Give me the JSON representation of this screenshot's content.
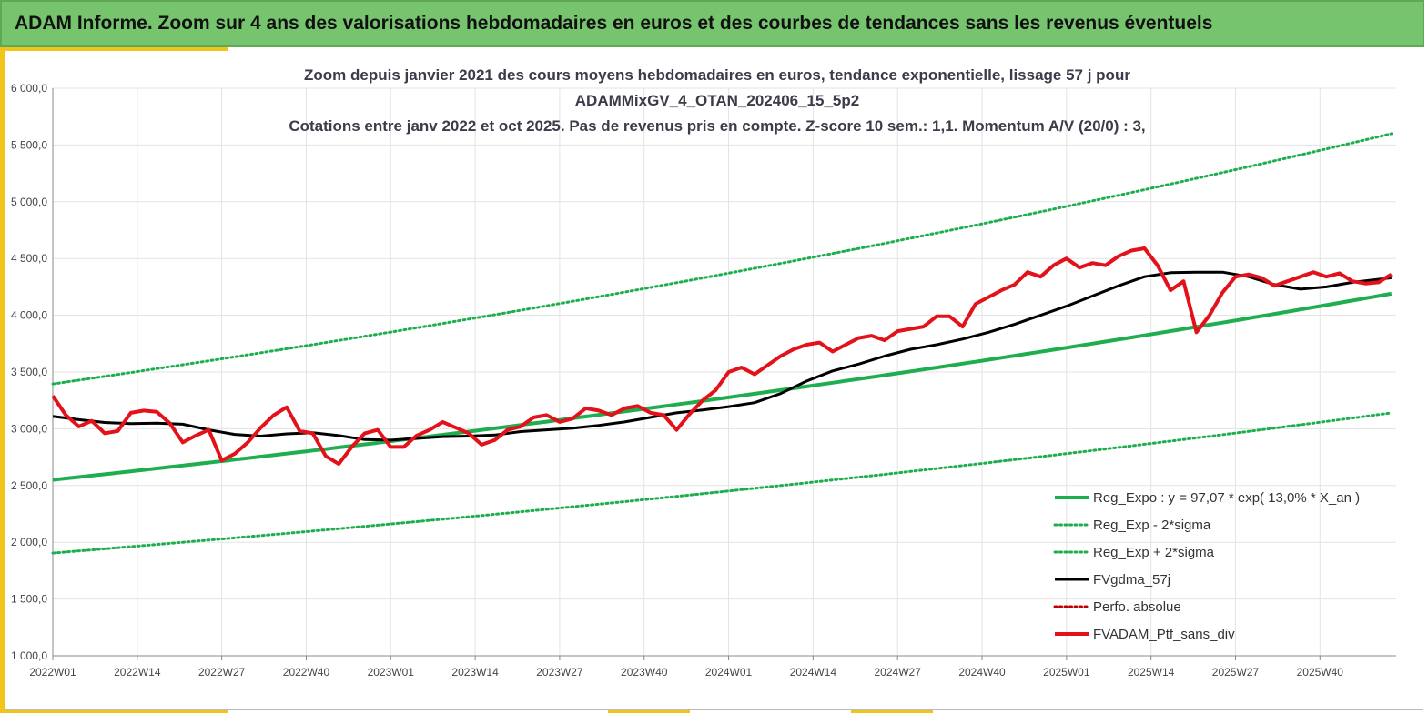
{
  "header": {
    "title": "ADAM Informe. Zoom sur 4 ans des valorisations hebdomadaires en euros et des courbes de tendances sans les revenus éventuels"
  },
  "colors": {
    "header_bg": "#77c46f",
    "accent": "#f0c419",
    "reg_expo": "#1fae4f",
    "fvgdma": "#000000",
    "perfo": "#c00000",
    "fvadam": "#e3121a",
    "grid": "#e3e3e3"
  },
  "chart_data": {
    "type": "line",
    "title_lines": [
      "Zoom depuis janvier 2021 des cours moyens hebdomadaires  en euros, tendance exponentielle, lissage 57 j pour",
      "ADAMMixGV_4_OTAN_202406_15_5p2",
      "Cotations  entre janv 2022 et oct 2025. Pas de revenus pris en compte. Z-score 10 sem.: 1,1. Momentum A/V (20/0) : 3,"
    ],
    "xlabel": "",
    "ylabel": "",
    "ylim": [
      1000,
      6000
    ],
    "y_ticks": [
      "1 000,0",
      "1 500,0",
      "2 000,0",
      "2 500,0",
      "3 000,0",
      "3 500,0",
      "4 000,0",
      "4 500,0",
      "5 000,0",
      "5 500,0",
      "6 000,0"
    ],
    "x_ticks": [
      "2022W01",
      "2022W14",
      "2022W27",
      "2022W40",
      "2023W01",
      "2023W14",
      "2023W27",
      "2023W40",
      "2024W01",
      "2024W14",
      "2024W27",
      "2024W40",
      "2025W01",
      "2025W14",
      "2025W27",
      "2025W40"
    ],
    "grid": true,
    "legend_position": "bottom-right",
    "series": [
      {
        "name": "Reg_Expo : y = 97,07 * exp( 13,0% *  X_an )",
        "style": "solid-thick",
        "color": "#1fae4f",
        "key_points": [
          [
            0,
            2550
          ],
          [
            52,
            2910
          ],
          [
            104,
            3320
          ],
          [
            156,
            3780
          ],
          [
            206,
            4190
          ]
        ]
      },
      {
        "name": "Reg_Exp - 2*sigma",
        "style": "dotted",
        "color": "#1fae4f",
        "key_points": [
          [
            0,
            1905
          ],
          [
            52,
            2200
          ],
          [
            104,
            2510
          ],
          [
            156,
            2840
          ],
          [
            206,
            3140
          ]
        ]
      },
      {
        "name": "Reg_Exp + 2*sigma",
        "style": "dotted",
        "color": "#1fae4f",
        "key_points": [
          [
            0,
            3395
          ],
          [
            52,
            3880
          ],
          [
            104,
            4420
          ],
          [
            156,
            5000
          ],
          [
            206,
            5600
          ]
        ]
      },
      {
        "name": "FVgdma_57j",
        "style": "solid",
        "color": "#000000",
        "key_points": [
          [
            0,
            3110
          ],
          [
            4,
            3080
          ],
          [
            8,
            3055
          ],
          [
            12,
            3045
          ],
          [
            16,
            3050
          ],
          [
            20,
            3040
          ],
          [
            24,
            2990
          ],
          [
            28,
            2950
          ],
          [
            32,
            2935
          ],
          [
            36,
            2955
          ],
          [
            40,
            2965
          ],
          [
            44,
            2940
          ],
          [
            48,
            2905
          ],
          [
            52,
            2900
          ],
          [
            56,
            2915
          ],
          [
            60,
            2930
          ],
          [
            64,
            2935
          ],
          [
            68,
            2945
          ],
          [
            72,
            2975
          ],
          [
            76,
            2990
          ],
          [
            80,
            3005
          ],
          [
            84,
            3030
          ],
          [
            88,
            3060
          ],
          [
            92,
            3100
          ],
          [
            96,
            3140
          ],
          [
            100,
            3165
          ],
          [
            104,
            3195
          ],
          [
            108,
            3230
          ],
          [
            112,
            3310
          ],
          [
            116,
            3420
          ],
          [
            120,
            3510
          ],
          [
            124,
            3570
          ],
          [
            128,
            3640
          ],
          [
            132,
            3700
          ],
          [
            136,
            3740
          ],
          [
            140,
            3790
          ],
          [
            144,
            3850
          ],
          [
            148,
            3920
          ],
          [
            152,
            4000
          ],
          [
            156,
            4080
          ],
          [
            160,
            4170
          ],
          [
            164,
            4260
          ],
          [
            168,
            4340
          ],
          [
            172,
            4375
          ],
          [
            176,
            4380
          ],
          [
            180,
            4380
          ],
          [
            184,
            4340
          ],
          [
            188,
            4270
          ],
          [
            192,
            4230
          ],
          [
            196,
            4250
          ],
          [
            200,
            4290
          ],
          [
            206,
            4330
          ]
        ]
      },
      {
        "name": "Perfo. absolue",
        "style": "dotted",
        "color": "#c00000",
        "key_points": []
      },
      {
        "name": "FVADAM_Ptf_sans_div",
        "style": "solid-thick",
        "color": "#e3121a",
        "key_points": [
          [
            0,
            3290
          ],
          [
            2,
            3120
          ],
          [
            4,
            3020
          ],
          [
            6,
            3070
          ],
          [
            8,
            2960
          ],
          [
            10,
            2980
          ],
          [
            12,
            3140
          ],
          [
            14,
            3160
          ],
          [
            16,
            3150
          ],
          [
            18,
            3050
          ],
          [
            20,
            2880
          ],
          [
            22,
            2940
          ],
          [
            24,
            2990
          ],
          [
            26,
            2720
          ],
          [
            28,
            2780
          ],
          [
            30,
            2880
          ],
          [
            32,
            3010
          ],
          [
            34,
            3120
          ],
          [
            36,
            3190
          ],
          [
            38,
            2980
          ],
          [
            40,
            2960
          ],
          [
            42,
            2760
          ],
          [
            44,
            2690
          ],
          [
            46,
            2840
          ],
          [
            48,
            2960
          ],
          [
            50,
            2990
          ],
          [
            52,
            2840
          ],
          [
            54,
            2840
          ],
          [
            56,
            2940
          ],
          [
            58,
            2990
          ],
          [
            60,
            3060
          ],
          [
            62,
            3010
          ],
          [
            64,
            2960
          ],
          [
            66,
            2860
          ],
          [
            68,
            2900
          ],
          [
            70,
            2990
          ],
          [
            72,
            3020
          ],
          [
            74,
            3100
          ],
          [
            76,
            3120
          ],
          [
            78,
            3060
          ],
          [
            80,
            3090
          ],
          [
            82,
            3180
          ],
          [
            84,
            3160
          ],
          [
            86,
            3120
          ],
          [
            88,
            3180
          ],
          [
            90,
            3200
          ],
          [
            92,
            3140
          ],
          [
            94,
            3120
          ],
          [
            96,
            2990
          ],
          [
            98,
            3130
          ],
          [
            100,
            3250
          ],
          [
            102,
            3340
          ],
          [
            104,
            3500
          ],
          [
            106,
            3540
          ],
          [
            108,
            3480
          ],
          [
            110,
            3560
          ],
          [
            112,
            3640
          ],
          [
            114,
            3700
          ],
          [
            116,
            3740
          ],
          [
            118,
            3760
          ],
          [
            120,
            3680
          ],
          [
            122,
            3740
          ],
          [
            124,
            3800
          ],
          [
            126,
            3820
          ],
          [
            128,
            3780
          ],
          [
            130,
            3860
          ],
          [
            132,
            3880
          ],
          [
            134,
            3900
          ],
          [
            136,
            3990
          ],
          [
            138,
            3990
          ],
          [
            140,
            3900
          ],
          [
            142,
            4100
          ],
          [
            144,
            4160
          ],
          [
            146,
            4220
          ],
          [
            148,
            4270
          ],
          [
            150,
            4380
          ],
          [
            152,
            4340
          ],
          [
            154,
            4440
          ],
          [
            156,
            4500
          ],
          [
            158,
            4420
          ],
          [
            160,
            4460
          ],
          [
            162,
            4440
          ],
          [
            164,
            4520
          ],
          [
            166,
            4570
          ],
          [
            168,
            4590
          ],
          [
            170,
            4440
          ],
          [
            172,
            4220
          ],
          [
            174,
            4300
          ],
          [
            176,
            3850
          ],
          [
            178,
            4000
          ],
          [
            180,
            4200
          ],
          [
            182,
            4340
          ],
          [
            184,
            4360
          ],
          [
            186,
            4330
          ],
          [
            188,
            4260
          ],
          [
            190,
            4300
          ],
          [
            192,
            4340
          ],
          [
            194,
            4380
          ],
          [
            196,
            4340
          ],
          [
            198,
            4370
          ],
          [
            200,
            4300
          ],
          [
            202,
            4280
          ],
          [
            204,
            4290
          ],
          [
            206,
            4360
          ]
        ]
      }
    ]
  }
}
